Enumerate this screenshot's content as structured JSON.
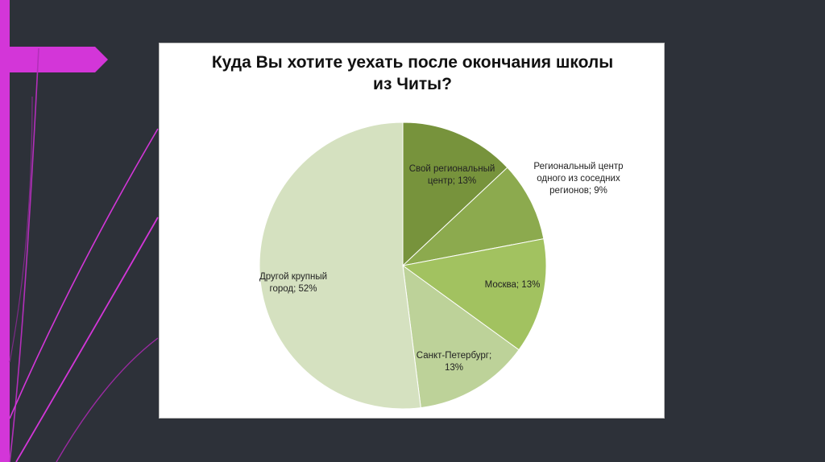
{
  "colors": {
    "background": "#2d3139",
    "accent": "#d336d8",
    "panel": "#ffffff"
  },
  "chart_data": {
    "type": "pie",
    "title": "Куда Вы хотите уехать после окончания школы из Читы?",
    "start_angle": "12 o'clock",
    "direction": "clockwise",
    "slices": [
      {
        "label": "Свой региональный центр; 13%",
        "value": 13,
        "color": "#77933c"
      },
      {
        "label": "Региональный центр одного из соседних регионов; 9%",
        "value": 9,
        "color": "#8caa4e"
      },
      {
        "label": "Москва; 13%",
        "value": 13,
        "color": "#a2c260"
      },
      {
        "label": "Санкт-Петербург; 13%",
        "value": 13,
        "color": "#bdd299"
      },
      {
        "label": "Другой крупный город; 52%",
        "value": 52,
        "color": "#d5e1c0"
      }
    ]
  }
}
